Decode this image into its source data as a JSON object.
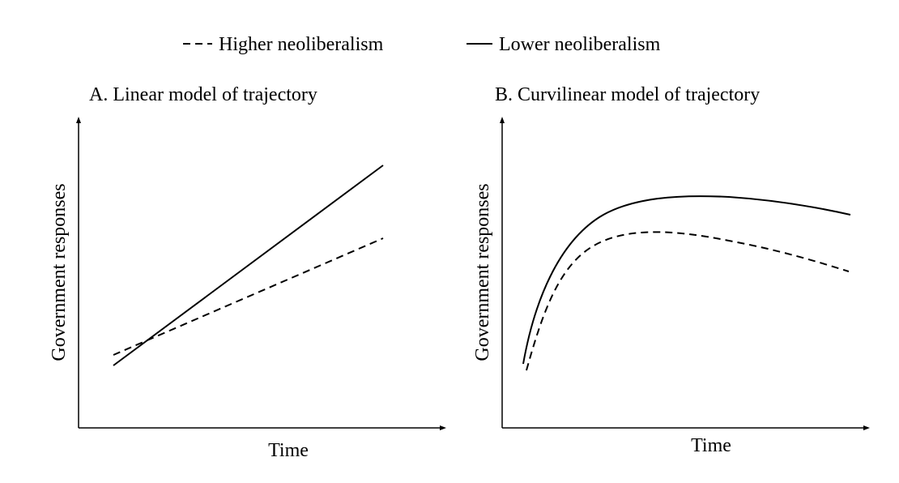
{
  "legend": {
    "dashed_label": "Higher neoliberalism",
    "solid_label": "Lower neoliberalism"
  },
  "panels": [
    {
      "id": "A",
      "title": "A. Linear model of trajectory",
      "xlabel": "Time",
      "ylabel": "Government responses",
      "model": "linear",
      "series": [
        {
          "legend": "Higher neoliberalism",
          "style": "dashed"
        },
        {
          "legend": "Lower neoliberalism",
          "style": "solid"
        }
      ]
    },
    {
      "id": "B",
      "title": "B. Curvilinear model of trajectory",
      "xlabel": "Time",
      "ylabel": "Government responses",
      "model": "curvilinear",
      "series": [
        {
          "legend": "Higher neoliberalism",
          "style": "dashed"
        },
        {
          "legend": "Lower neoliberalism",
          "style": "solid"
        }
      ]
    }
  ]
}
